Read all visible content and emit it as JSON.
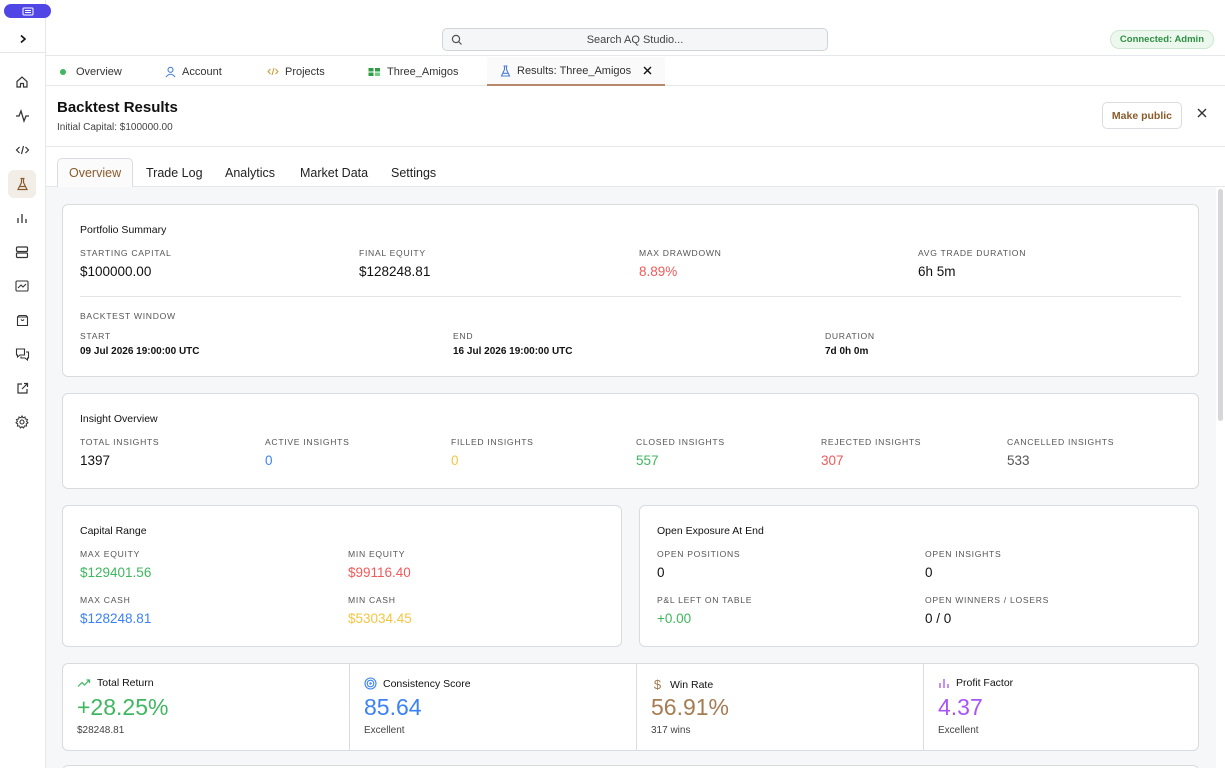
{
  "search": {
    "placeholder": "Search AQ Studio..."
  },
  "status": {
    "connected": "Connected: Admin"
  },
  "tabs": [
    {
      "label": "Overview",
      "icon": "green-dot-icon"
    },
    {
      "label": "Account",
      "icon": "user-icon"
    },
    {
      "label": "Projects",
      "icon": "code-icon"
    },
    {
      "label": "Three_Amigos",
      "icon": "project-icon"
    },
    {
      "label": "Results: Three_Amigos",
      "icon": "flask-icon"
    }
  ],
  "header": {
    "title": "Backtest Results",
    "subtitle": "Initial Capital: $100000.00",
    "make_public": "Make public"
  },
  "subtabs": [
    "Overview",
    "Trade Log",
    "Analytics",
    "Market Data",
    "Settings"
  ],
  "portfolio": {
    "title": "Portfolio Summary",
    "items": [
      {
        "label": "STARTING CAPITAL",
        "value": "$100000.00"
      },
      {
        "label": "FINAL EQUITY",
        "value": "$128248.81"
      },
      {
        "label": "MAX DRAWDOWN",
        "value": "8.89%"
      },
      {
        "label": "AVG TRADE DURATION",
        "value": "6h 5m"
      }
    ],
    "window_label": "BACKTEST WINDOW",
    "window": [
      {
        "label": "START",
        "value": "09 Jul 2026 19:00:00 UTC"
      },
      {
        "label": "END",
        "value": "16 Jul 2026 19:00:00 UTC"
      },
      {
        "label": "DURATION",
        "value": "7d 0h 0m"
      }
    ]
  },
  "insights": {
    "title": "Insight Overview",
    "items": [
      {
        "label": "TOTAL INSIGHTS",
        "value": "1397"
      },
      {
        "label": "ACTIVE INSIGHTS",
        "value": "0"
      },
      {
        "label": "FILLED INSIGHTS",
        "value": "0"
      },
      {
        "label": "CLOSED INSIGHTS",
        "value": "557"
      },
      {
        "label": "REJECTED INSIGHTS",
        "value": "307"
      },
      {
        "label": "CANCELLED INSIGHTS",
        "value": "533"
      }
    ]
  },
  "capital": {
    "title": "Capital Range",
    "items": [
      {
        "label": "MAX EQUITY",
        "value": "$129401.56"
      },
      {
        "label": "MIN EQUITY",
        "value": "$99116.40"
      },
      {
        "label": "MAX CASH",
        "value": "$128248.81"
      },
      {
        "label": "MIN CASH",
        "value": "$53034.45"
      }
    ]
  },
  "exposure": {
    "title": "Open Exposure At End",
    "items": [
      {
        "label": "OPEN POSITIONS",
        "value": "0"
      },
      {
        "label": "OPEN INSIGHTS",
        "value": "0"
      },
      {
        "label": "P&L LEFT ON TABLE",
        "value": "+0.00"
      },
      {
        "label": "OPEN WINNERS / LOSERS",
        "value": "0 / 0"
      }
    ]
  },
  "metrics": [
    {
      "title": "Total Return",
      "value": "+28.25%",
      "sub": "$28248.81",
      "icon": "trending-up-icon"
    },
    {
      "title": "Consistency Score",
      "value": "85.64",
      "sub": "Excellent",
      "icon": "target-icon"
    },
    {
      "title": "Win Rate",
      "value": "56.91%",
      "sub": "317 wins",
      "icon": "dollar-icon"
    },
    {
      "title": "Profit Factor",
      "value": "4.37",
      "sub": "Excellent",
      "icon": "bar-chart-icon"
    }
  ]
}
